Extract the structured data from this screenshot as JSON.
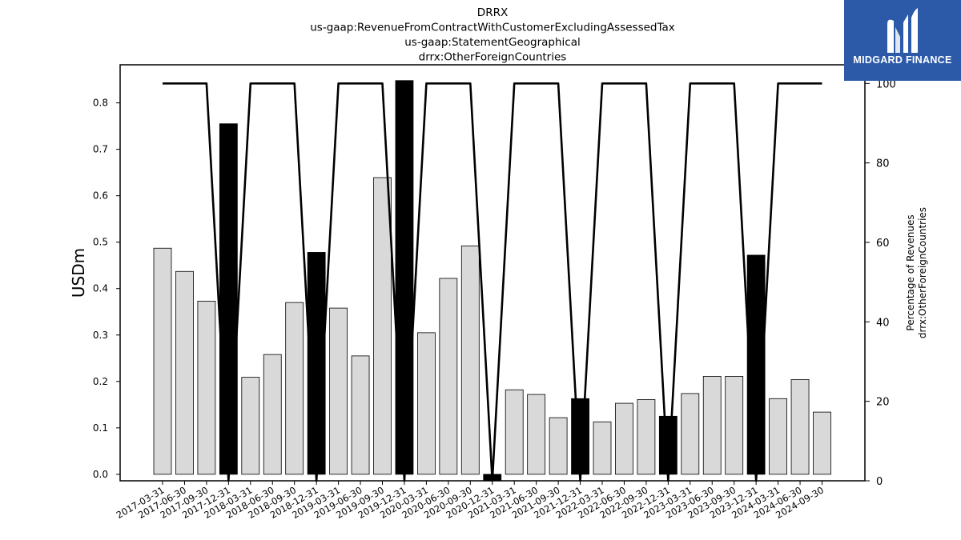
{
  "chart_data": {
    "type": "bar",
    "title": [
      "DRRX",
      "us-gaap:RevenueFromContractWithCustomerExcludingAssessedTax",
      "us-gaap:StatementGeographical",
      "drrx:OtherForeignCountries"
    ],
    "ylabel": "USDm",
    "ylabel_right": [
      "Percentage of Revenues",
      "drrx:OtherForeignCountries"
    ],
    "ylim": [
      -0.014,
      0.882
    ],
    "ylim_right": [
      0,
      104.7
    ],
    "yticks": [
      "0.0",
      "0.1",
      "0.2",
      "0.3",
      "0.4",
      "0.5",
      "0.6",
      "0.7",
      "0.8"
    ],
    "yticks_right": [
      "0",
      "20",
      "40",
      "60",
      "80",
      "100"
    ],
    "categories": [
      "2017-03-31",
      "2017-06-30",
      "2017-09-30",
      "2017-12-31",
      "2018-03-31",
      "2018-06-30",
      "2018-09-30",
      "2018-12-31",
      "2019-03-31",
      "2019-06-30",
      "2019-09-30",
      "2019-12-31",
      "2020-03-31",
      "2020-06-30",
      "2020-09-30",
      "2020-12-31",
      "2021-03-31",
      "2021-06-30",
      "2021-09-30",
      "2021-12-31",
      "2022-03-31",
      "2022-06-30",
      "2022-09-30",
      "2022-12-31",
      "2023-03-31",
      "2023-06-30",
      "2023-09-30",
      "2023-12-31",
      "2024-03-31",
      "2024-06-30",
      "2024-09-30"
    ],
    "series": [
      {
        "values": [
          0.487,
          0.437,
          0.373,
          0.755,
          0.209,
          0.258,
          0.37,
          0.478,
          0.358,
          0.255,
          0.639,
          0.848,
          0.305,
          0.422,
          0.492,
          -0.014,
          0.182,
          0.172,
          0.122,
          0.163,
          0.113,
          0.153,
          0.161,
          0.125,
          0.174,
          0.211,
          0.211,
          0.472,
          0.163,
          0.204,
          0.134
        ],
        "highlight": [
          false,
          false,
          false,
          true,
          false,
          false,
          false,
          true,
          false,
          false,
          false,
          true,
          false,
          false,
          false,
          true,
          false,
          false,
          false,
          true,
          false,
          false,
          false,
          true,
          false,
          false,
          false,
          true,
          false,
          false,
          false
        ]
      },
      {
        "axis": "right",
        "type": "line",
        "values": [
          100,
          100,
          100,
          0,
          100,
          100,
          100,
          0,
          100,
          100,
          100,
          0,
          100,
          100,
          100,
          0,
          100,
          100,
          100,
          0,
          100,
          100,
          100,
          0,
          100,
          100,
          100,
          0,
          100,
          100,
          100
        ]
      }
    ],
    "colors": {
      "bar": "#d9d9d9",
      "highlight": "#000000",
      "line": "#000000"
    }
  },
  "logo": {
    "text": "MIDGARD FINANCE",
    "color": "#2d5aa8"
  }
}
